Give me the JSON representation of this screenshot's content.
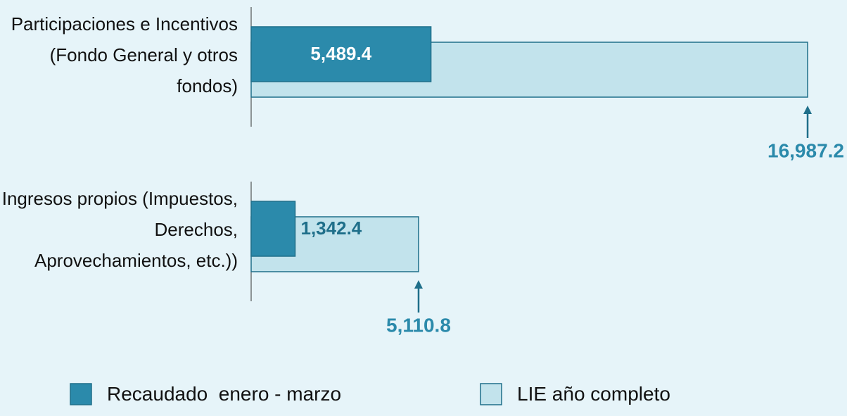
{
  "chart_data": {
    "type": "bar",
    "orientation": "horizontal",
    "categories": [
      "Participaciones e Incentivos (Fondo General y otros fondos)",
      "Ingresos propios (Impuestos, Derechos, Aprovechamientos, etc.))"
    ],
    "series": [
      {
        "name": "Recaudado  enero - marzo",
        "color": "#2b8aab",
        "values": [
          5489.4,
          1342.4
        ],
        "value_labels": [
          "5,489.4",
          "1,342.4"
        ]
      },
      {
        "name": "LIE año completo",
        "color": "#c2e3ec",
        "values": [
          16987.2,
          5110.8
        ],
        "value_labels": [
          "16,987.2",
          "5,110.8"
        ]
      }
    ],
    "legend": "bottom"
  }
}
